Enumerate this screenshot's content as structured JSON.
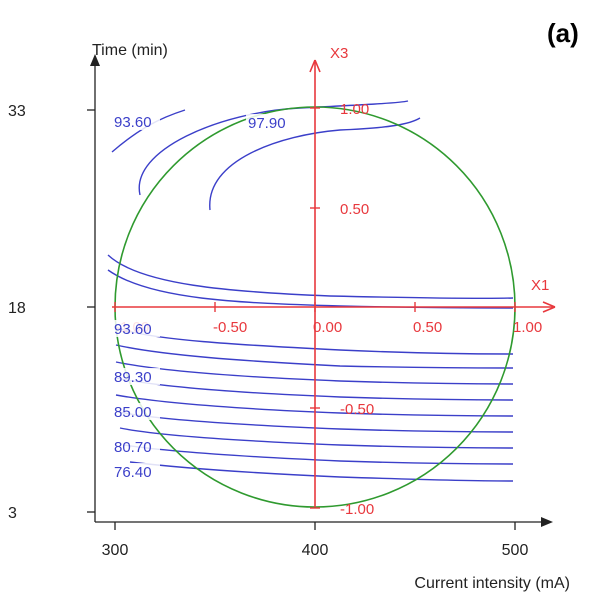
{
  "chart_data": {
    "type": "contour",
    "panel_label": "(a)",
    "xlabel": "Current intensity (mA)",
    "ylabel": "Time (min)",
    "x_ticks": [
      "300",
      "400",
      "500"
    ],
    "y_ticks": [
      "33",
      "18",
      "3"
    ],
    "xlim": [
      300,
      500
    ],
    "ylim": [
      3,
      33
    ],
    "coded_axes": {
      "x_name": "X1",
      "y_name": "X3",
      "x_ticks": [
        "-1.00",
        "-0.50",
        "0.00",
        "0.50",
        "1.00"
      ],
      "y_ticks": [
        "1.00",
        "0.50",
        "-0.50",
        "-1.00"
      ]
    },
    "design_region": {
      "shape": "circle",
      "center": [
        400,
        18
      ],
      "radius_coded": 1.0
    },
    "contour_levels": [
      {
        "label": "97.90"
      },
      {
        "label": "93.60"
      },
      {
        "label": "93.60"
      },
      {
        "label": "89.30"
      },
      {
        "label": "85.00"
      },
      {
        "label": "80.70"
      },
      {
        "label": "76.40"
      }
    ],
    "colors": {
      "axes": "#222222",
      "coded_axes": "#e8383d",
      "contours": "#3b3fc9",
      "circle": "#2f9a2f"
    }
  }
}
